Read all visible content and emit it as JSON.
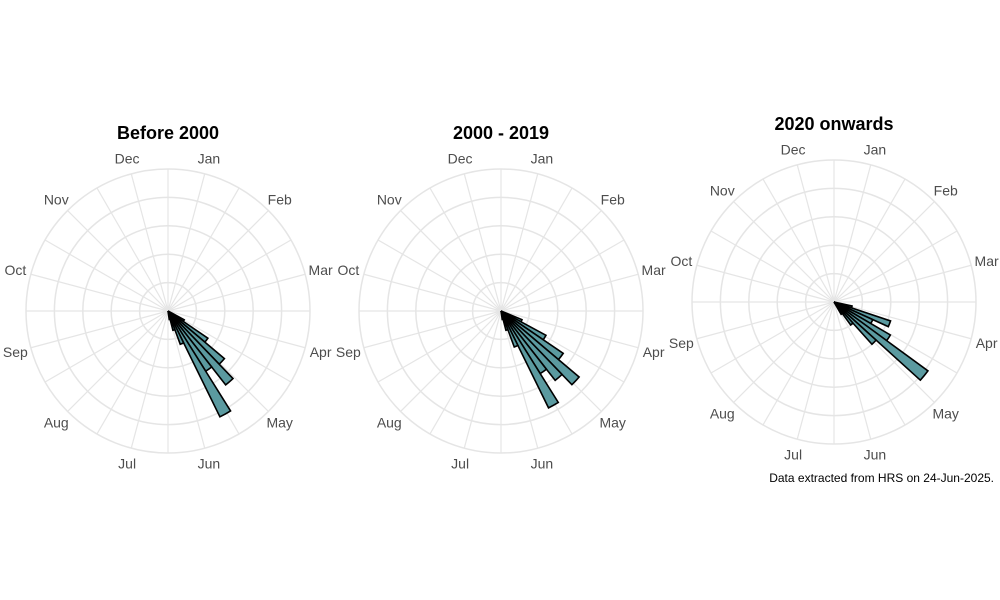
{
  "chart_data": [
    {
      "type": "bar",
      "subtype": "polar-rose",
      "title": "Before 2000",
      "categories": [
        "Jan",
        "Feb",
        "Mar",
        "Apr",
        "May",
        "Jun",
        "Jul",
        "Aug",
        "Sep",
        "Oct",
        "Nov",
        "Dec"
      ],
      "month_labels": [
        "Jan",
        "Feb",
        "Mar",
        "Apr",
        "May",
        "Jun",
        "Jul",
        "Aug",
        "Sep",
        "Oct",
        "Nov",
        "Dec"
      ],
      "bars": [
        {
          "start_day": 120,
          "width_days": 6,
          "value": 0.13
        },
        {
          "start_day": 126,
          "width_days": 6,
          "value": 0.34
        },
        {
          "start_day": 132,
          "width_days": 6,
          "value": 0.52
        },
        {
          "start_day": 138,
          "width_days": 6,
          "value": 0.66
        },
        {
          "start_day": 144,
          "width_days": 6,
          "value": 0.5
        },
        {
          "start_day": 150,
          "width_days": 6,
          "value": 0.83
        },
        {
          "start_day": 156,
          "width_days": 6,
          "value": 0.25
        },
        {
          "start_day": 162,
          "width_days": 6,
          "value": 0.14
        },
        {
          "start_day": 168,
          "width_days": 6,
          "value": 0.06
        }
      ],
      "rmax": 1.0,
      "grid": true
    },
    {
      "type": "bar",
      "subtype": "polar-rose",
      "title": "2000 - 2019",
      "categories": [
        "Jan",
        "Feb",
        "Mar",
        "Apr",
        "May",
        "Jun",
        "Jul",
        "Aug",
        "Sep",
        "Oct",
        "Nov",
        "Dec"
      ],
      "month_labels": [
        "Jan",
        "Feb",
        "Mar",
        "Apr",
        "May",
        "Jun",
        "Jul",
        "Aug",
        "Sep",
        "Oct",
        "Nov",
        "Dec"
      ],
      "bars": [
        {
          "start_day": 114,
          "width_days": 6,
          "value": 0.16
        },
        {
          "start_day": 120,
          "width_days": 6,
          "value": 0.36
        },
        {
          "start_day": 126,
          "width_days": 6,
          "value": 0.53
        },
        {
          "start_day": 132,
          "width_days": 6,
          "value": 0.72
        },
        {
          "start_day": 138,
          "width_days": 6,
          "value": 0.62
        },
        {
          "start_day": 144,
          "width_days": 6,
          "value": 0.52
        },
        {
          "start_day": 150,
          "width_days": 6,
          "value": 0.76
        },
        {
          "start_day": 156,
          "width_days": 6,
          "value": 0.27
        },
        {
          "start_day": 162,
          "width_days": 6,
          "value": 0.14
        },
        {
          "start_day": 168,
          "width_days": 6,
          "value": 0.06
        }
      ],
      "rmax": 1.0,
      "grid": true
    },
    {
      "type": "bar",
      "subtype": "polar-rose",
      "title": "2020 onwards",
      "categories": [
        "Jan",
        "Feb",
        "Mar",
        "Apr",
        "May",
        "Jun",
        "Jul",
        "Aug",
        "Sep",
        "Oct",
        "Nov",
        "Dec"
      ],
      "month_labels": [
        "Jan",
        "Feb",
        "Mar",
        "Apr",
        "May",
        "Jun",
        "Jul",
        "Aug",
        "Sep",
        "Oct",
        "Nov",
        "Dec"
      ],
      "bars": [
        {
          "start_day": 104,
          "width_days": 6,
          "value": 0.13
        },
        {
          "start_day": 110,
          "width_days": 6,
          "value": 0.42
        },
        {
          "start_day": 116,
          "width_days": 6,
          "value": 0.3
        },
        {
          "start_day": 122,
          "width_days": 6,
          "value": 0.46
        },
        {
          "start_day": 128,
          "width_days": 6,
          "value": 0.82
        },
        {
          "start_day": 134,
          "width_days": 6,
          "value": 0.4
        },
        {
          "start_day": 140,
          "width_days": 6,
          "value": 0.2
        },
        {
          "start_day": 146,
          "width_days": 6,
          "value": 0.1
        }
      ],
      "rmax": 1.0,
      "grid": true
    }
  ],
  "caption": "Data extracted from HRS on 24-Jun-2025.",
  "colors": {
    "bar_fill": "#5b9aa0",
    "bar_stroke": "#000000",
    "grid": "#e5e5e5",
    "label": "#4d4d4d"
  }
}
